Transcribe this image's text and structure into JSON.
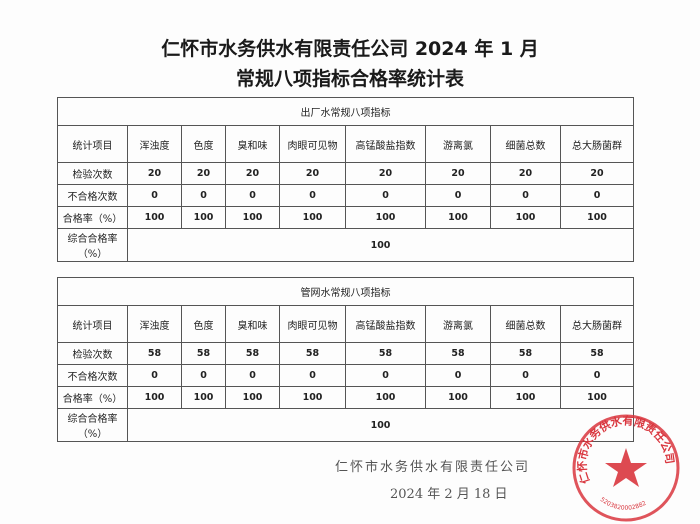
{
  "title_line1": "仁怀市水务供水有限责任公司 2024 年 1 月",
  "title_line2": "常规八项指标合格率统计表",
  "columns": [
    "统计项目",
    "浑浊度",
    "色度",
    "臭和味",
    "肉眼可见物",
    "高锰酸盐指数",
    "游离氯",
    "细菌总数",
    "总大肠菌群"
  ],
  "tables": [
    {
      "caption": "出厂水常规八项指标",
      "rows": [
        {
          "label": "检验次数",
          "values": [
            "20",
            "20",
            "20",
            "20",
            "20",
            "20",
            "20",
            "20"
          ]
        },
        {
          "label": "不合格次数",
          "values": [
            "0",
            "0",
            "0",
            "0",
            "0",
            "0",
            "0",
            "0"
          ]
        },
        {
          "label": "合格率（%）",
          "values": [
            "100",
            "100",
            "100",
            "100",
            "100",
            "100",
            "100",
            "100"
          ]
        }
      ],
      "overall_label": "综合合格率（%）",
      "overall_value": "100"
    },
    {
      "caption": "管网水常规八项指标",
      "rows": [
        {
          "label": "检验次数",
          "values": [
            "58",
            "58",
            "58",
            "58",
            "58",
            "58",
            "58",
            "58"
          ]
        },
        {
          "label": "不合格次数",
          "values": [
            "0",
            "0",
            "0",
            "0",
            "0",
            "0",
            "0",
            "0"
          ]
        },
        {
          "label": "合格率（%）",
          "values": [
            "100",
            "100",
            "100",
            "100",
            "100",
            "100",
            "100",
            "100"
          ]
        }
      ],
      "overall_label": "综合合格率（%）",
      "overall_value": "100"
    }
  ],
  "signature": "仁怀市水务供水有限责任公司",
  "date": "2024 年 2 月 18 日",
  "seal": {
    "text": "仁怀市水务供水有限责任公司",
    "code": "5203820002882",
    "color": "#d9363e"
  }
}
